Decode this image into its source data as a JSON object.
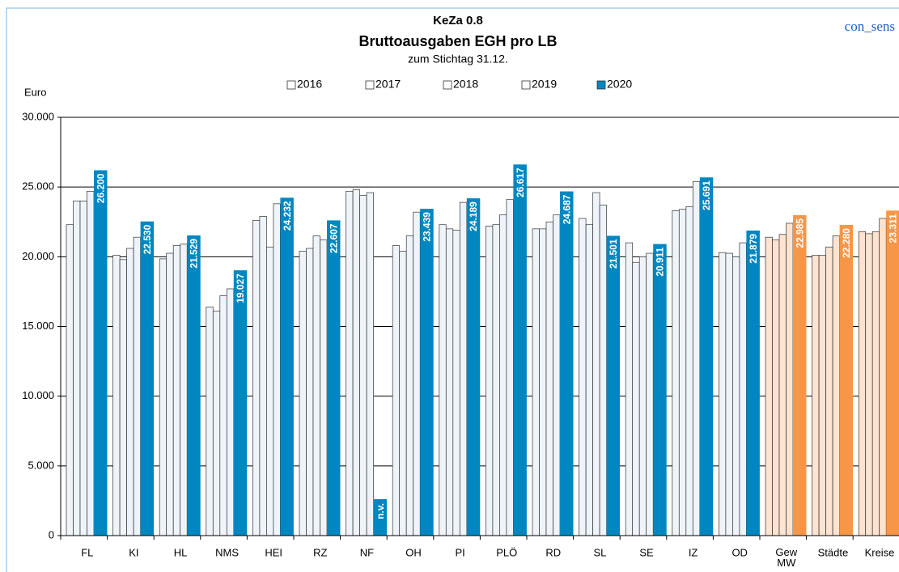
{
  "chart_data": {
    "type": "bar",
    "title": "KeZa 0.8",
    "subtitle": "Bruttoausgaben EGH pro LB",
    "note": "zum Stichtag 31.12.",
    "brand": "con_sens",
    "y_label": "Euro",
    "categories": [
      "FL",
      "KI",
      "HL",
      "NMS",
      "HEI",
      "RZ",
      "NF",
      "OH",
      "PI",
      "PLÖ",
      "RD",
      "SL",
      "SE",
      "IZ",
      "OD",
      "Gew MW",
      "Städte",
      "Kreise"
    ],
    "series": [
      {
        "name": "2016",
        "colors": [
          "#eef4fa",
          "#eef4fa",
          "#eef4fa",
          "#eef4fa",
          "#eef4fa",
          "#eef4fa",
          "#eef4fa",
          "#eef4fa",
          "#eef4fa",
          "#eef4fa",
          "#eef4fa",
          "#eef4fa",
          "#eef4fa",
          "#eef4fa",
          "#eef4fa",
          "#fde3d0",
          "#fde3d0",
          "#fde3d0"
        ],
        "values": [
          22300,
          20100,
          19850,
          16400,
          22600,
          20400,
          24700,
          20800,
          22300,
          22200,
          22000,
          22750,
          21000,
          23300,
          20300,
          21400,
          20100,
          21800
        ]
      },
      {
        "name": "2017",
        "colors": [
          "#eef4fa",
          "#eef4fa",
          "#eef4fa",
          "#eef4fa",
          "#eef4fa",
          "#eef4fa",
          "#eef4fa",
          "#eef4fa",
          "#eef4fa",
          "#eef4fa",
          "#eef4fa",
          "#eef4fa",
          "#eef4fa",
          "#eef4fa",
          "#eef4fa",
          "#fde3d0",
          "#fde3d0",
          "#fde3d0"
        ],
        "values": [
          24000,
          19800,
          20250,
          16100,
          22900,
          20600,
          24800,
          20400,
          22000,
          22300,
          22000,
          22300,
          19600,
          23400,
          20250,
          21200,
          20100,
          21650
        ]
      },
      {
        "name": "2018",
        "colors": [
          "#eef4fa",
          "#eef4fa",
          "#eef4fa",
          "#eef4fa",
          "#eef4fa",
          "#eef4fa",
          "#eef4fa",
          "#eef4fa",
          "#eef4fa",
          "#eef4fa",
          "#eef4fa",
          "#eef4fa",
          "#eef4fa",
          "#eef4fa",
          "#eef4fa",
          "#fde3d0",
          "#fde3d0",
          "#fde3d0"
        ],
        "values": [
          24000,
          20600,
          20800,
          17200,
          20700,
          21500,
          24400,
          21500,
          21900,
          23000,
          22500,
          24600,
          20000,
          23600,
          20000,
          21600,
          20700,
          21800
        ]
      },
      {
        "name": "2019",
        "colors": [
          "#eef4fa",
          "#eef4fa",
          "#eef4fa",
          "#eef4fa",
          "#eef4fa",
          "#eef4fa",
          "#eef4fa",
          "#eef4fa",
          "#eef4fa",
          "#eef4fa",
          "#eef4fa",
          "#eef4fa",
          "#eef4fa",
          "#eef4fa",
          "#eef4fa",
          "#fde3d0",
          "#fde3d0",
          "#fde3d0"
        ],
        "values": [
          24700,
          21400,
          20900,
          17700,
          23800,
          21200,
          24600,
          23200,
          23900,
          24100,
          23000,
          23700,
          20250,
          25400,
          21000,
          22400,
          21500,
          22750
        ]
      },
      {
        "name": "2020",
        "colors": [
          "#0087c1",
          "#0087c1",
          "#0087c1",
          "#0087c1",
          "#0087c1",
          "#0087c1",
          "#0087c1",
          "#0087c1",
          "#0087c1",
          "#0087c1",
          "#0087c1",
          "#0087c1",
          "#0087c1",
          "#0087c1",
          "#0087c1",
          "#f79646",
          "#f79646",
          "#f79646"
        ],
        "values": [
          26200,
          22530,
          21529,
          19027,
          24232,
          22607,
          null,
          23439,
          24189,
          26617,
          24687,
          21501,
          20911,
          25691,
          21879,
          22985,
          22280,
          23311
        ],
        "value_labels": [
          "26.200",
          "22.530",
          "21.529",
          "19.027",
          "24.232",
          "22.607",
          "n.v.",
          "23.439",
          "24.189",
          "26.617",
          "24.687",
          "21.501",
          "20.911",
          "25.691",
          "21.879",
          "22.985",
          "22.280",
          "23.311"
        ]
      }
    ],
    "legend_color": "#0087c1",
    "ylim": [
      0,
      30000
    ],
    "yticks": [
      0,
      {
        "value": 5000,
        "label": "5.000"
      },
      {
        "value": 10000,
        "label": "10.000"
      },
      {
        "value": 15000,
        "label": "15.000"
      },
      {
        "value": 20000,
        "label": "20.000"
      },
      {
        "value": 25000,
        "label": "25.000"
      },
      {
        "value": 30000,
        "label": "30.000"
      }
    ],
    "grid": true
  }
}
